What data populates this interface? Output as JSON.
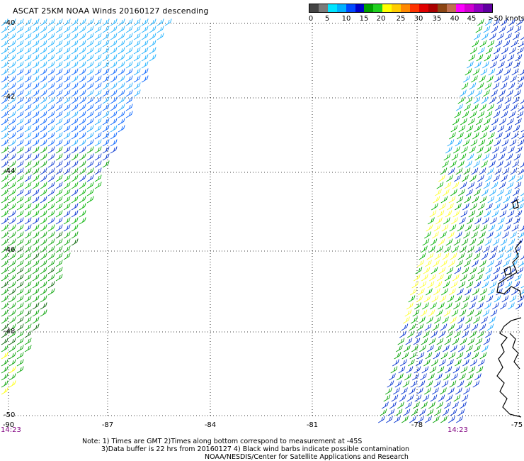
{
  "title": "ASCAT 25KM NOAA Winds 20160127 descending",
  "legend": {
    "colors": [
      "#444444",
      "#7a7a7a",
      "#00e5ff",
      "#00b0ff",
      "#0048ff",
      "#0000c8",
      "#00a000",
      "#20d020",
      "#ffff00",
      "#ffcc00",
      "#ff8800",
      "#ff3300",
      "#e00000",
      "#aa0000",
      "#8b4513",
      "#c07050",
      "#ff00ff",
      "#d000d0",
      "#9000c0",
      "#6000a0"
    ],
    "labels": [
      "0",
      "5",
      "10",
      "15",
      "20",
      "25",
      "30",
      "35",
      "40",
      "45",
      ">50 knots"
    ]
  },
  "axes": {
    "lat_labels": [
      "-40",
      "-42",
      "-44",
      "-46",
      "-48",
      "-50"
    ],
    "lon_labels": [
      "-90",
      "-87",
      "-84",
      "-81",
      "-78",
      "-75"
    ]
  },
  "times": {
    "left": "14:23",
    "right": "14:23"
  },
  "notes": {
    "line1": "Note: 1) Times are GMT 2)Times along bottom correspond to measurement at -45S",
    "line2": "3)Data buffer is 22 hrs from 20160127 4) Black wind barbs indicate possible contamination",
    "line3": "NOAA/NESDIS/Center for Satellite Applications and Research"
  }
}
